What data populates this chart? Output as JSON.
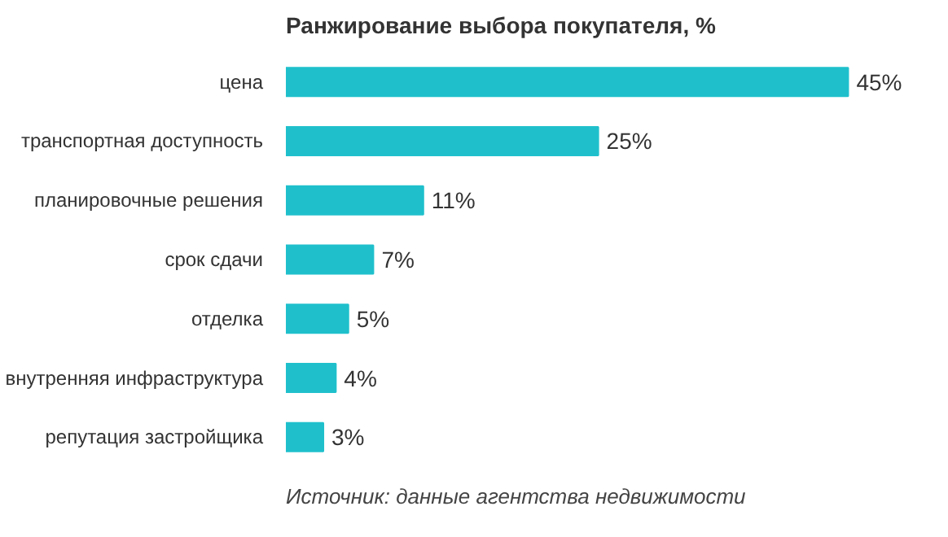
{
  "chart_data": {
    "type": "bar",
    "orientation": "horizontal",
    "title": "Ранжирование выбора покупателя, %",
    "categories": [
      "цена",
      "транспортная доступность",
      "планировочные решения",
      "срок сдачи",
      "отделка",
      "внутренняя инфраструктура",
      "репутация застройщика"
    ],
    "values": [
      45,
      25,
      11,
      7,
      5,
      4,
      3
    ],
    "value_labels": [
      "45%",
      "25%",
      "11%",
      "7%",
      "5%",
      "4%",
      "3%"
    ],
    "color": "#1fc0cc",
    "grid": false,
    "annotations": [
      "Источник: данные агентства недвижимости"
    ]
  }
}
